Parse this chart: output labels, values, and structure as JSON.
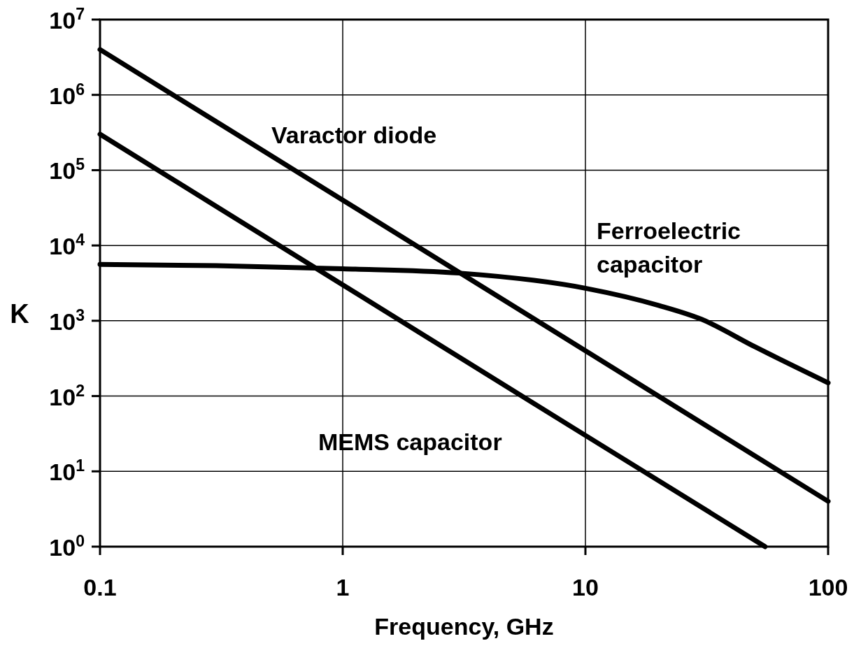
{
  "chart_data": {
    "type": "line",
    "xlabel": "Frequency, GHz",
    "ylabel": "K",
    "log": "xy",
    "xlim": [
      0.1,
      100
    ],
    "ylim": [
      1,
      10000000
    ],
    "xticks": [
      0.1,
      1,
      10,
      100
    ],
    "yticks": [
      {
        "value": 1,
        "label": "10$^{0}$"
      },
      {
        "value": 10,
        "label": "10$^{1}$"
      },
      {
        "value": 100,
        "label": "10$^{2}$"
      },
      {
        "value": 1000,
        "label": "10$^{3}$"
      },
      {
        "value": 10000,
        "label": "10$^{4}$"
      },
      {
        "value": 100000,
        "label": "10$^{5}$"
      },
      {
        "value": 1000000,
        "label": "10$^{6}$"
      },
      {
        "value": 10000000,
        "label": "10$^{7}$"
      }
    ],
    "grid": true,
    "marker": "none",
    "line_style": "solid",
    "series": [
      {
        "name": "Varactor diode",
        "color": "#000000",
        "x": [
          0.1,
          1,
          10,
          100
        ],
        "values": [
          4000000,
          40000,
          400,
          4
        ]
      },
      {
        "name": "Ferroelectric capacitor",
        "color": "#000000",
        "x": [
          0.1,
          0.3,
          1,
          3,
          10,
          20,
          30,
          50,
          100
        ],
        "values": [
          5600,
          5400,
          4900,
          4300,
          2700,
          1600,
          1050,
          450,
          150
        ]
      },
      {
        "name": "MEMS capacitor",
        "color": "#000000",
        "x": [
          0.1,
          1,
          10,
          55
        ],
        "values": [
          300000,
          3000,
          30,
          1
        ]
      }
    ]
  }
}
